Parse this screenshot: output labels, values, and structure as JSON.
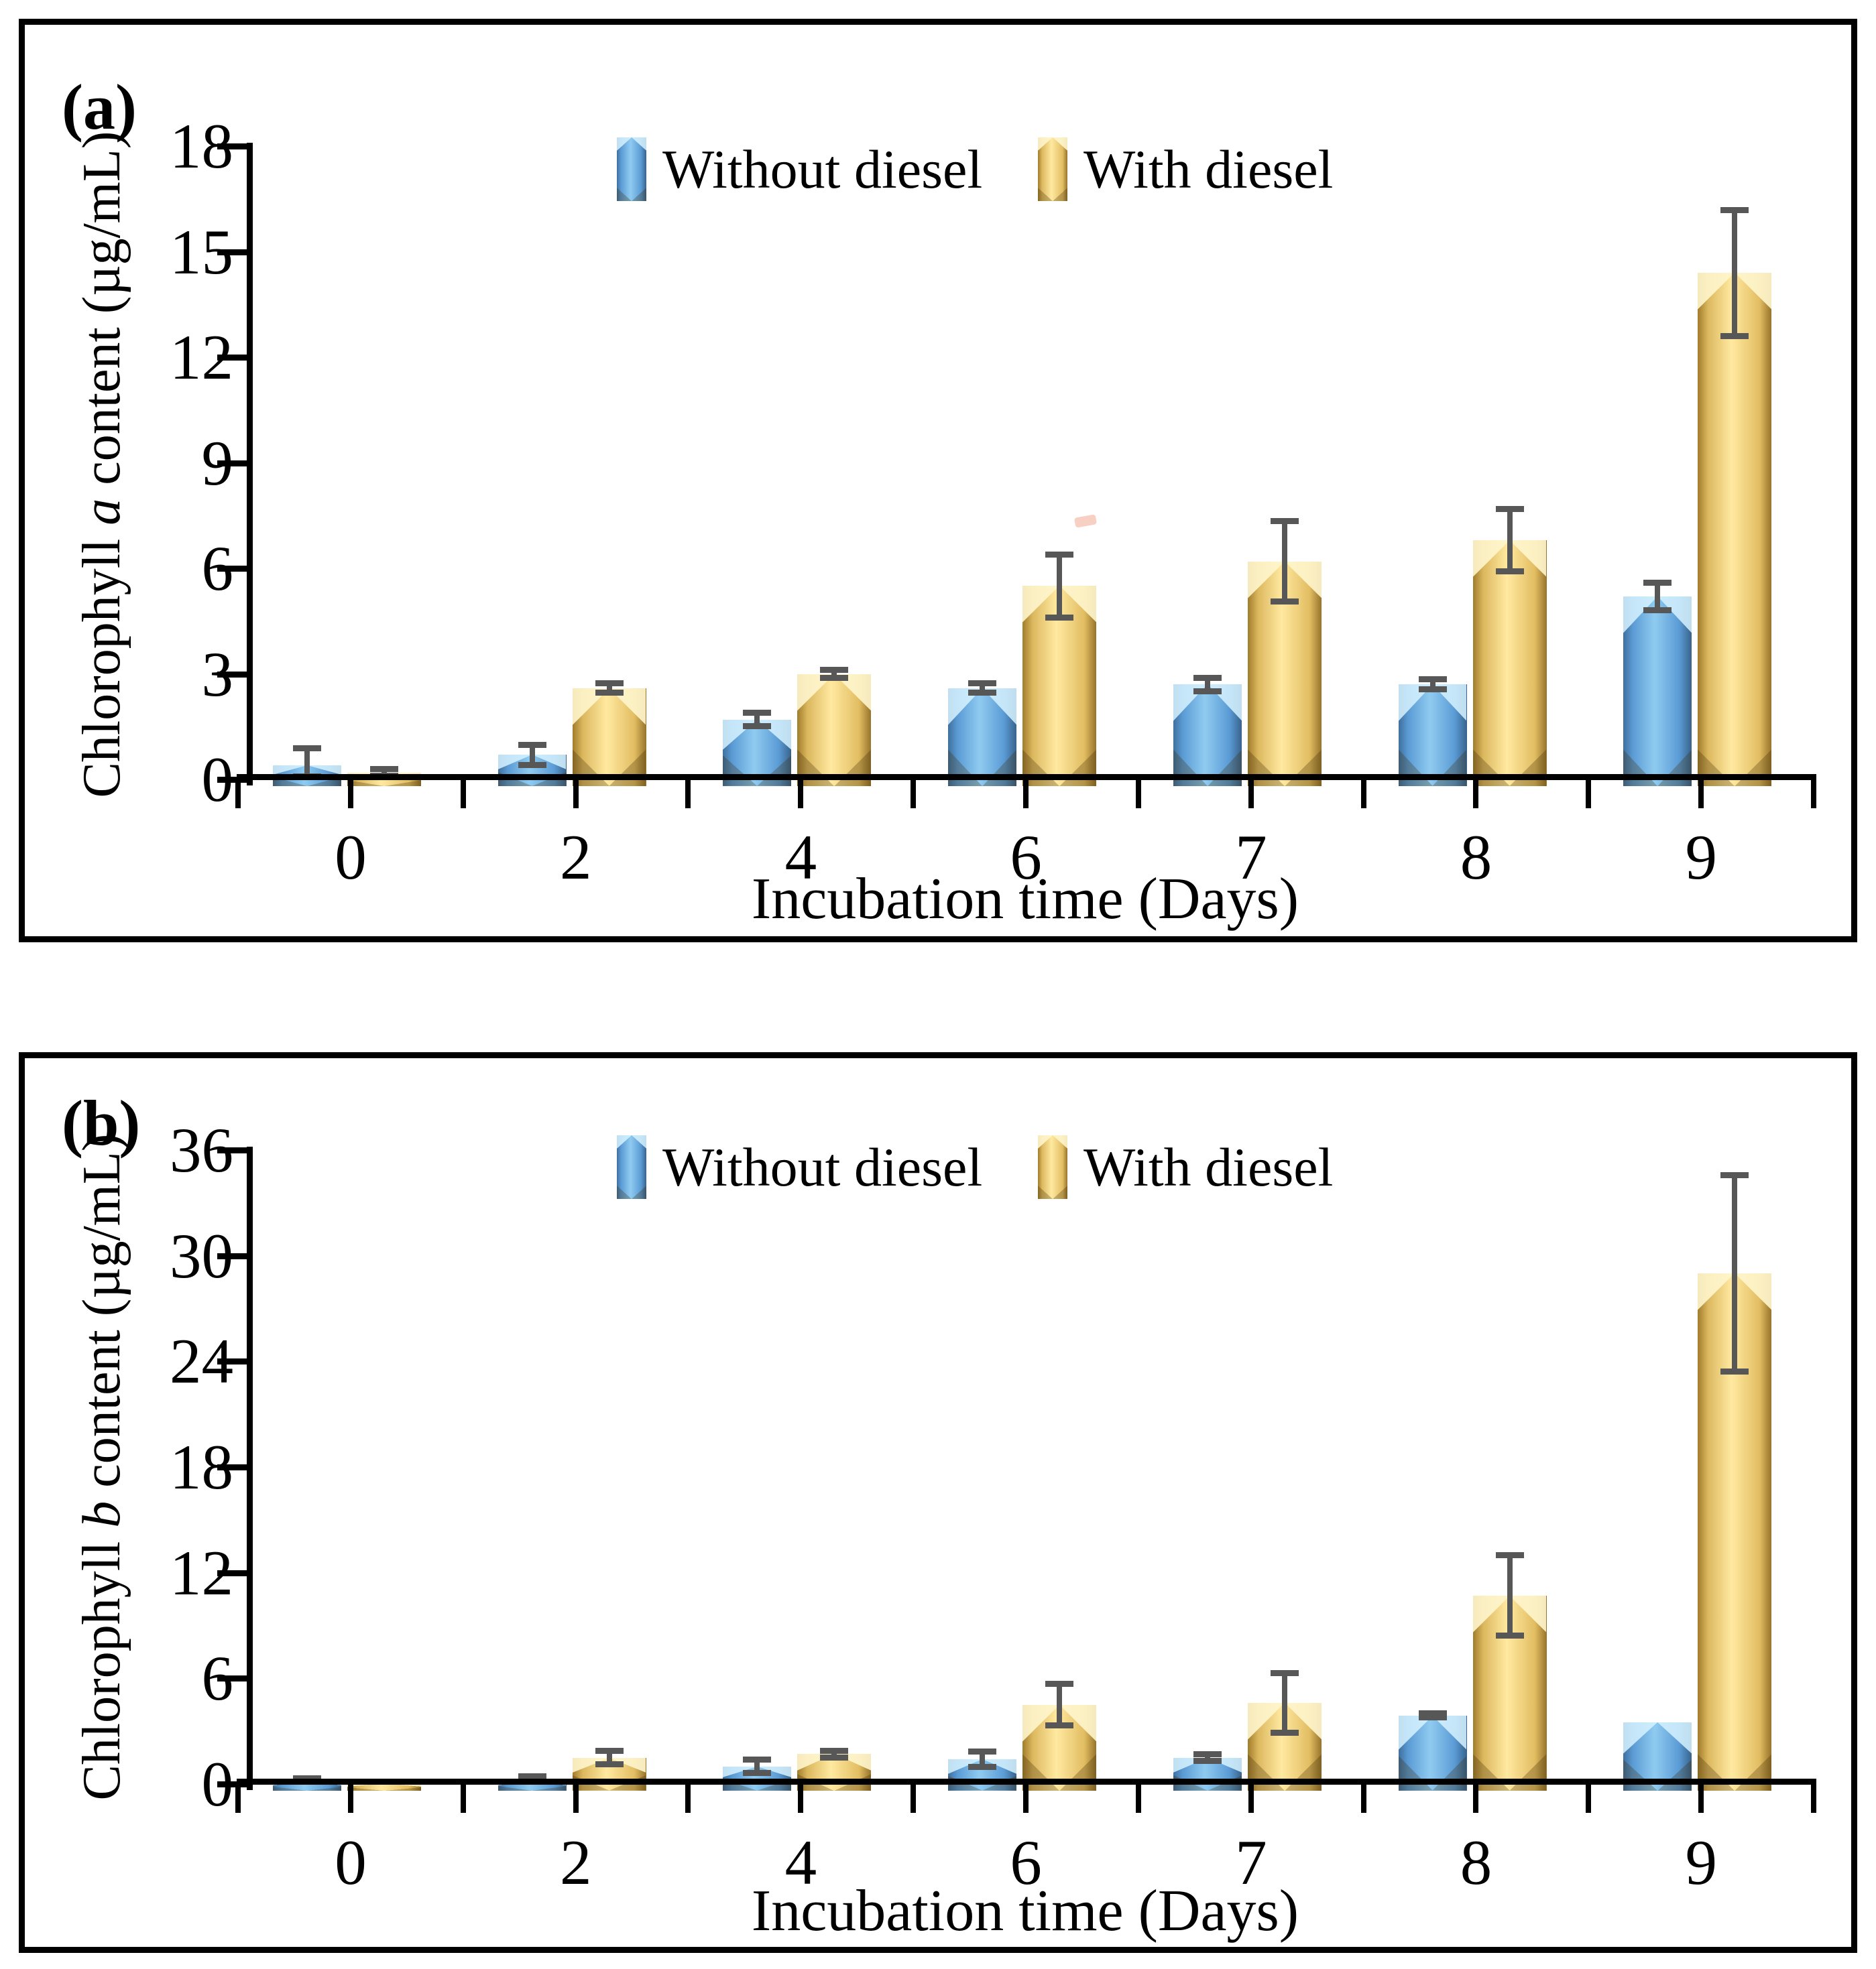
{
  "figure": {
    "panel_a_label": "(a)",
    "panel_b_label": "(b)",
    "error_bar_color": "#575757",
    "series_colors": {
      "without_diesel": "#5b9bd5",
      "with_diesel": "#e9c66e"
    }
  },
  "chart_data": [
    {
      "type": "bar",
      "panel_label": "(a)",
      "title": "",
      "xlabel": "Incubation time (Days)",
      "ylabel_prefix": "Chlorophyll ",
      "ylabel_italic": "a",
      "ylabel_suffix": " content (µg/mL)",
      "categories": [
        "0",
        "2",
        "4",
        "6",
        "7",
        "8",
        "9"
      ],
      "ylim": [
        0,
        18
      ],
      "yticks": [
        0,
        3,
        6,
        9,
        12,
        15,
        18
      ],
      "grid": false,
      "legend_position": "top-center",
      "legend": [
        "Without diesel",
        "With diesel"
      ],
      "series": [
        {
          "name": "Without diesel",
          "color": "#5b9bd5",
          "values": [
            0.4,
            0.7,
            1.7,
            2.6,
            2.7,
            2.7,
            5.2
          ],
          "errors": [
            0.5,
            0.3,
            0.2,
            0.15,
            0.2,
            0.15,
            0.4
          ]
        },
        {
          "name": "With diesel",
          "color": "#e9c66e",
          "values": [
            0.2,
            2.6,
            3.0,
            5.5,
            6.2,
            6.8,
            14.4
          ],
          "errors": [
            0.1,
            0.15,
            0.12,
            0.9,
            1.15,
            0.9,
            1.8
          ]
        }
      ]
    },
    {
      "type": "bar",
      "panel_label": "(b)",
      "title": "",
      "xlabel": "Incubation time (Days)",
      "ylabel_prefix": "Chlorophyll ",
      "ylabel_italic": "b",
      "ylabel_suffix": " content (µg/mL)",
      "categories": [
        "0",
        "2",
        "4",
        "6",
        "7",
        "8",
        "9"
      ],
      "ylim": [
        0,
        36
      ],
      "yticks": [
        0,
        6,
        12,
        18,
        24,
        30,
        36
      ],
      "grid": false,
      "legend_position": "top-center",
      "legend": [
        "Without diesel",
        "With diesel"
      ],
      "series": [
        {
          "name": "Without diesel",
          "color": "#5b9bd5",
          "values": [
            0.15,
            0.2,
            1.0,
            1.4,
            1.5,
            3.9,
            3.5
          ],
          "errors": [
            0.2,
            0.25,
            0.4,
            0.45,
            0.2,
            0.15,
            0
          ]
        },
        {
          "name": "With diesel",
          "color": "#e9c66e",
          "values": [
            0.05,
            1.5,
            1.7,
            4.5,
            4.6,
            10.7,
            29.0
          ],
          "errors": [
            0,
            0.4,
            0.2,
            1.2,
            1.7,
            2.3,
            5.6
          ]
        }
      ]
    }
  ]
}
